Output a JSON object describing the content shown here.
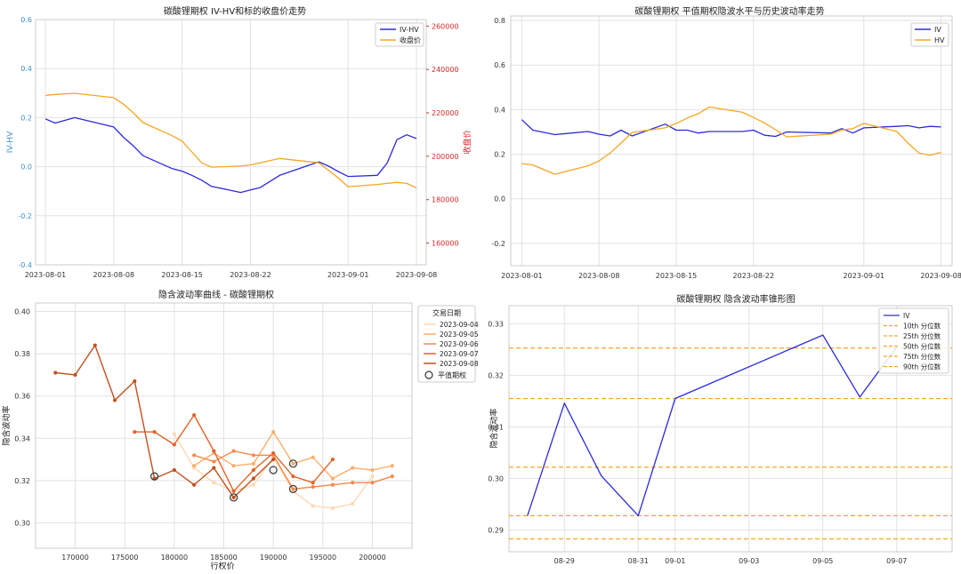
{
  "charts": [
    {
      "id": "c1",
      "type": "line",
      "title": "碳酸锂期权 IV-HV和标的收盘价走势",
      "ylabel_left": "IV-HV",
      "ylabel_right": "收盘价",
      "xticks": [
        "2023-08-01",
        "2023-08-08",
        "2023-08-15",
        "2023-08-22",
        "2023-09-01",
        "2023-09-08"
      ],
      "yticks_left": [
        "-0.4",
        "-0.2",
        "0.0",
        "0.2",
        "0.4",
        "0.6"
      ],
      "yticks_right": [
        "160000",
        "180000",
        "200000",
        "220000",
        "240000",
        "260000"
      ],
      "legend": [
        "IV-HV",
        "收盘价"
      ]
    },
    {
      "id": "c2",
      "type": "line",
      "title": "碳酸锂期权 平值期权隐波水平与历史波动率走势",
      "xticks": [
        "2023-08-01",
        "2023-08-08",
        "2023-08-15",
        "2023-08-22",
        "2023-09-01",
        "2023-09-08"
      ],
      "yticks": [
        "-0.2",
        "0.0",
        "0.2",
        "0.4",
        "0.6",
        "0.8"
      ],
      "legend": [
        "IV",
        "HV"
      ]
    },
    {
      "id": "c3",
      "type": "line",
      "title": "隐含波动率曲线 - 碳酸锂期权",
      "xlabel": "行权价",
      "ylabel": "隐含波动率",
      "xticks": [
        "170000",
        "175000",
        "180000",
        "185000",
        "190000",
        "195000",
        "200000"
      ],
      "yticks": [
        "0.30",
        "0.32",
        "0.34",
        "0.36",
        "0.38",
        "0.40"
      ],
      "legend_title": "交易日期",
      "legend": [
        "2023-09-04",
        "2023-09-05",
        "2023-09-06",
        "2023-09-07",
        "2023-09-08"
      ],
      "legend_marker": "平值期权"
    },
    {
      "id": "c4",
      "type": "line",
      "title": "碳酸锂期权 隐含波动率锥形图",
      "ylabel": "隐含波动率",
      "xticks": [
        "08-29",
        "08-31",
        "09-01",
        "09-03",
        "09-05",
        "09-07"
      ],
      "yticks": [
        "0.29",
        "0.30",
        "0.31",
        "0.32",
        "0.33"
      ],
      "legend": [
        "IV",
        "10th 分位数",
        "25th 分位数",
        "50th 分位数",
        "75th 分位数",
        "90th 分位数"
      ]
    }
  ],
  "chart_data": [
    {
      "type": "line",
      "title": "碳酸锂期权 IV-HV和标的收盘价走势",
      "x_range": [
        "2023-07-31",
        "2023-09-09"
      ],
      "ylim_left": [
        -0.4,
        0.6
      ],
      "ylim_right": [
        150000,
        263000
      ],
      "series": [
        {
          "name": "IV-HV",
          "axis": "left",
          "color": "#2b2bd9",
          "x": [
            "2023-08-01",
            "2023-08-02",
            "2023-08-04",
            "2023-08-08",
            "2023-08-09",
            "2023-08-10",
            "2023-08-11",
            "2023-08-14",
            "2023-08-15",
            "2023-08-16",
            "2023-08-17",
            "2023-08-18",
            "2023-08-21",
            "2023-08-22",
            "2023-08-23",
            "2023-08-24",
            "2023-08-25",
            "2023-08-29",
            "2023-08-30",
            "2023-08-31",
            "2023-09-01",
            "2023-09-04",
            "2023-09-05",
            "2023-09-06",
            "2023-09-07",
            "2023-09-08"
          ],
          "y": [
            0.195,
            0.178,
            0.2,
            0.162,
            0.12,
            0.085,
            0.045,
            -0.008,
            -0.018,
            -0.035,
            -0.055,
            -0.08,
            -0.105,
            -0.095,
            -0.085,
            -0.06,
            -0.035,
            0.02,
            0.002,
            -0.02,
            -0.04,
            -0.035,
            0.015,
            0.11,
            0.13,
            0.115
          ]
        },
        {
          "name": "收盘价",
          "axis": "right",
          "color": "#f5a623",
          "x": [
            "2023-08-01",
            "2023-08-02",
            "2023-08-04",
            "2023-08-08",
            "2023-08-09",
            "2023-08-10",
            "2023-08-11",
            "2023-08-14",
            "2023-08-15",
            "2023-08-16",
            "2023-08-17",
            "2023-08-18",
            "2023-08-21",
            "2023-08-22",
            "2023-08-23",
            "2023-08-24",
            "2023-08-25",
            "2023-08-29",
            "2023-08-30",
            "2023-08-31",
            "2023-09-01",
            "2023-09-04",
            "2023-09-05",
            "2023-09-06",
            "2023-09-07",
            "2023-09-08"
          ],
          "y": [
            228000,
            228500,
            229000,
            227000,
            224000,
            220000,
            215500,
            209500,
            207000,
            202000,
            197000,
            195000,
            195500,
            196000,
            197000,
            198000,
            199000,
            197000,
            193500,
            190000,
            186000,
            187000,
            187500,
            188000,
            187500,
            185500
          ]
        }
      ]
    },
    {
      "type": "line",
      "title": "碳酸锂期权 平值期权隐波水平与历史波动率走势",
      "x_range": [
        "2023-07-31",
        "2023-09-09"
      ],
      "ylim": [
        -0.3,
        0.82
      ],
      "series": [
        {
          "name": "IV",
          "color": "#2b2bd9",
          "x": [
            "2023-08-01",
            "2023-08-02",
            "2023-08-04",
            "2023-08-07",
            "2023-08-08",
            "2023-08-09",
            "2023-08-10",
            "2023-08-11",
            "2023-08-14",
            "2023-08-15",
            "2023-08-16",
            "2023-08-17",
            "2023-08-18",
            "2023-08-21",
            "2023-08-22",
            "2023-08-23",
            "2023-08-24",
            "2023-08-25",
            "2023-08-29",
            "2023-08-30",
            "2023-08-31",
            "2023-09-01",
            "2023-09-04",
            "2023-09-05",
            "2023-09-06",
            "2023-09-07",
            "2023-09-08"
          ],
          "y": [
            0.355,
            0.308,
            0.288,
            0.302,
            0.29,
            0.282,
            0.308,
            0.282,
            0.335,
            0.308,
            0.308,
            0.295,
            0.302,
            0.302,
            0.308,
            0.285,
            0.28,
            0.3,
            0.295,
            0.315,
            0.295,
            0.318,
            0.325,
            0.328,
            0.318,
            0.325,
            0.322
          ]
        },
        {
          "name": "HV",
          "color": "#f5a623",
          "x": [
            "2023-08-01",
            "2023-08-02",
            "2023-08-04",
            "2023-08-07",
            "2023-08-08",
            "2023-08-09",
            "2023-08-10",
            "2023-08-11",
            "2023-08-14",
            "2023-08-15",
            "2023-08-16",
            "2023-08-17",
            "2023-08-18",
            "2023-08-21",
            "2023-08-22",
            "2023-08-23",
            "2023-08-24",
            "2023-08-25",
            "2023-08-29",
            "2023-08-30",
            "2023-08-31",
            "2023-09-01",
            "2023-09-04",
            "2023-09-05",
            "2023-09-06",
            "2023-09-07",
            "2023-09-08"
          ],
          "y": [
            0.158,
            0.152,
            0.11,
            0.148,
            0.17,
            0.205,
            0.25,
            0.298,
            0.318,
            0.338,
            0.362,
            0.382,
            0.412,
            0.388,
            0.365,
            0.34,
            0.31,
            0.278,
            0.29,
            0.308,
            0.315,
            0.338,
            0.302,
            0.25,
            0.205,
            0.195,
            0.208
          ]
        }
      ]
    },
    {
      "type": "line",
      "title": "隐含波动率曲线 - 碳酸锂期权",
      "xlabel": "行权价",
      "ylabel": "隐含波动率",
      "xlim": [
        166000,
        204000
      ],
      "ylim": [
        0.288,
        0.404
      ],
      "series": [
        {
          "name": "2023-09-04",
          "color": "#fdd9b5",
          "x": [
            180000,
            182000,
            184000,
            186000,
            188000,
            190000,
            192000,
            194000,
            196000,
            198000,
            200000
          ],
          "y": [
            0.342,
            0.326,
            0.319,
            0.315,
            0.318,
            0.331,
            0.315,
            0.308,
            0.307,
            0.309,
            0.322
          ]
        },
        {
          "name": "2023-09-05",
          "color": "#fdae6b",
          "x": [
            182000,
            184000,
            186000,
            188000,
            190000,
            192000,
            194000,
            196000,
            198000,
            200000,
            202000
          ],
          "y": [
            0.327,
            0.333,
            0.327,
            0.328,
            0.343,
            0.328,
            0.331,
            0.321,
            0.326,
            0.325,
            0.327
          ]
        },
        {
          "name": "2023-09-06",
          "color": "#f5894a",
          "x": [
            182000,
            184000,
            186000,
            188000,
            190000,
            192000,
            194000,
            196000,
            198000,
            200000,
            202000
          ],
          "y": [
            0.332,
            0.329,
            0.334,
            0.332,
            0.332,
            0.316,
            0.317,
            0.318,
            0.319,
            0.319,
            0.322
          ]
        },
        {
          "name": "2023-09-07",
          "color": "#e1642a",
          "x": [
            176000,
            178000,
            180000,
            182000,
            184000,
            186000,
            188000,
            190000,
            192000,
            194000,
            196000
          ],
          "y": [
            0.343,
            0.343,
            0.337,
            0.351,
            0.334,
            0.315,
            0.325,
            0.333,
            0.322,
            0.319,
            0.33
          ]
        },
        {
          "name": "2023-09-08",
          "color": "#c2501e",
          "x": [
            168000,
            170000,
            172000,
            174000,
            176000,
            178000,
            180000,
            182000,
            184000,
            186000,
            188000,
            190000
          ],
          "y": [
            0.371,
            0.37,
            0.384,
            0.358,
            0.367,
            0.321,
            0.325,
            0.318,
            0.326,
            0.312,
            0.321,
            0.33
          ]
        }
      ],
      "atm_points": [
        {
          "x": 178000,
          "y": 0.322
        },
        {
          "x": 186000,
          "y": 0.312
        },
        {
          "x": 190000,
          "y": 0.325
        },
        {
          "x": 192000,
          "y": 0.328
        },
        {
          "x": 192000,
          "y": 0.316
        }
      ]
    },
    {
      "type": "line",
      "title": "碳酸锂期权 隐含波动率锥形图",
      "ylabel": "隐含波动率",
      "x_range": [
        "2023-08-27T12:00",
        "2023-09-08T12:00"
      ],
      "ylim": [
        0.2858,
        0.3335
      ],
      "series": [
        {
          "name": "IV",
          "color": "#2b2bd9",
          "x": [
            "2023-08-28",
            "2023-08-29",
            "2023-08-30",
            "2023-08-31",
            "2023-09-01",
            "2023-09-05",
            "2023-09-06",
            "2023-09-07"
          ],
          "y": [
            0.2928,
            0.3146,
            0.3005,
            0.2928,
            0.3155,
            0.3278,
            0.3158,
            0.3255
          ]
        }
      ],
      "quantiles": [
        {
          "name": "10th 分位数",
          "y": 0.2883
        },
        {
          "name": "25th 分位数",
          "y": 0.2928
        },
        {
          "name": "50th 分位数",
          "y": 0.3022
        },
        {
          "name": "75th 分位数",
          "y": 0.3155
        },
        {
          "name": "90th 分位数",
          "y": 0.3253
        }
      ]
    }
  ]
}
